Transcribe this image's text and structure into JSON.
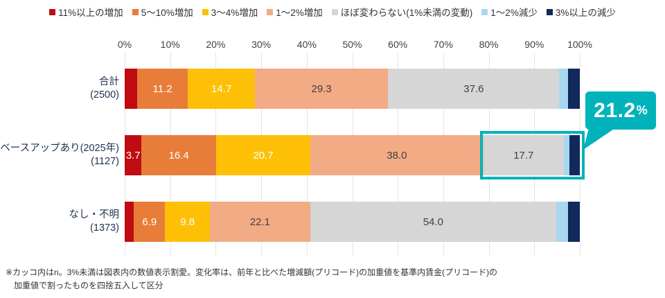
{
  "legend": {
    "items": [
      {
        "label": "11%以上の増加",
        "color": "#c00b10"
      },
      {
        "label": "5〜10%増加",
        "color": "#e87d3a"
      },
      {
        "label": "3〜4%増加",
        "color": "#fdc006"
      },
      {
        "label": "1〜2%増加",
        "color": "#f2ab85"
      },
      {
        "label": "ほぼ変わらない(1%未満の変動)",
        "color": "#d6d6d6"
      },
      {
        "label": "1〜2%減少",
        "color": "#a8d8f0"
      },
      {
        "label": "3%以上の減少",
        "color": "#12295c"
      }
    ]
  },
  "axis": {
    "tick_labels": [
      "0%",
      "10%",
      "20%",
      "30%",
      "40%",
      "50%",
      "60%",
      "70%",
      "80%",
      "90%",
      "100%"
    ],
    "min": 0,
    "max": 100
  },
  "chart_data": {
    "type": "bar",
    "orientation": "horizontal",
    "stacked": true,
    "value_unit": "%",
    "label_display_threshold": 3,
    "xlim": [
      0,
      100
    ],
    "grid": true,
    "legend_position": "top",
    "categories": [
      {
        "label": "合計",
        "n": "(2500)"
      },
      {
        "label": "ベースアップあり(2025年)",
        "n": "(1127)"
      },
      {
        "label": "なし・不明",
        "n": "(1373)"
      }
    ],
    "series": [
      {
        "name": "11%以上の増加",
        "color": "#c00b10",
        "label_color": "#ffffff",
        "values": [
          2.7,
          3.7,
          2.0
        ]
      },
      {
        "name": "5〜10%増加",
        "color": "#e87d3a",
        "label_color": "#ffffff",
        "values": [
          11.2,
          16.4,
          6.9
        ]
      },
      {
        "name": "3〜4%増加",
        "color": "#fdc006",
        "label_color": "#ffffff",
        "values": [
          14.7,
          20.7,
          9.8
        ]
      },
      {
        "name": "1〜2%増加",
        "color": "#f2ab85",
        "label_color": "#404040",
        "values": [
          29.3,
          38.0,
          22.1
        ]
      },
      {
        "name": "ほぼ変わらない(1%未満の変動)",
        "color": "#d6d6d6",
        "label_color": "#404040",
        "values": [
          37.6,
          17.7,
          54.0
        ]
      },
      {
        "name": "1〜2%減少",
        "color": "#a8d8f0",
        "label_color": "#404040",
        "values": [
          1.9,
          1.3,
          2.6
        ]
      },
      {
        "name": "3%以上の減少",
        "color": "#12295c",
        "label_color": "#ffffff",
        "values": [
          2.6,
          2.2,
          2.6
        ]
      }
    ]
  },
  "highlight": {
    "row_index": 1,
    "from_series_index": 4,
    "color": "#00b3ba",
    "callout_value": "21.2",
    "callout_unit": "%"
  },
  "footnote": {
    "line1": "※カッコ内はn。3%未満は図表内の数値表示割愛。変化率は、前年と比べた増減額(プリコード)の加重値を基準内賃金(プリコード)の",
    "line2": "加重値で割ったものを四捨五入して区分"
  }
}
